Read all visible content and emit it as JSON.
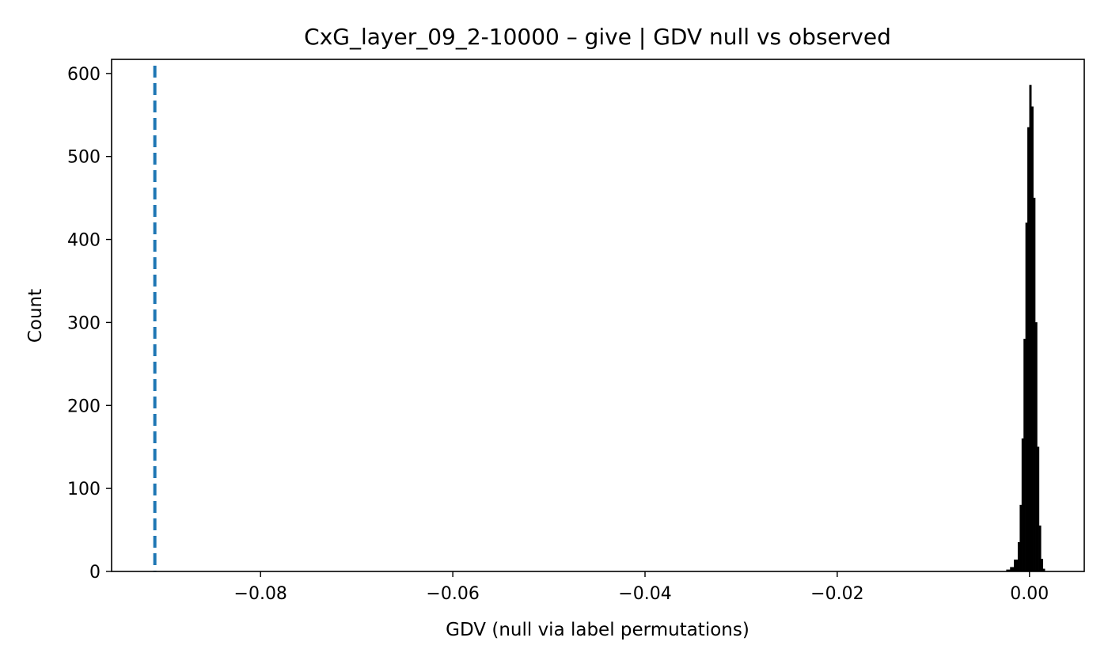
{
  "chart_data": {
    "type": "histogram",
    "title": "CxG_layer_09_2-10000 – give | GDV null vs observed",
    "xlabel": "GDV (null via label permutations)",
    "ylabel": "Count",
    "xlim": [
      -0.0955,
      0.0057
    ],
    "ylim": [
      0,
      617
    ],
    "x_ticks": [
      -0.08,
      -0.06,
      -0.04,
      -0.02,
      0.0
    ],
    "x_tick_labels": [
      "−0.08",
      "−0.06",
      "−0.04",
      "−0.02",
      "0.00"
    ],
    "y_ticks": [
      0,
      100,
      200,
      300,
      400,
      500,
      600
    ],
    "y_tick_labels": [
      "0",
      "100",
      "200",
      "300",
      "400",
      "500",
      "600"
    ],
    "grid": false,
    "observed": {
      "value": -0.091,
      "style": "dashed",
      "color": "#1f77b4"
    },
    "histogram": {
      "bar_color": "#000000",
      "bins": [
        {
          "x0": -0.0024,
          "x1": -0.002,
          "count": 2
        },
        {
          "x0": -0.002,
          "x1": -0.0016,
          "count": 5
        },
        {
          "x0": -0.0016,
          "x1": -0.0012,
          "count": 14
        },
        {
          "x0": -0.0012,
          "x1": -0.001,
          "count": 35
        },
        {
          "x0": -0.001,
          "x1": -0.0008,
          "count": 80
        },
        {
          "x0": -0.0008,
          "x1": -0.0006,
          "count": 160
        },
        {
          "x0": -0.0006,
          "x1": -0.0004,
          "count": 280
        },
        {
          "x0": -0.0004,
          "x1": -0.0002,
          "count": 420
        },
        {
          "x0": -0.0002,
          "x1": 0.0,
          "count": 535
        },
        {
          "x0": 0.0,
          "x1": 0.0002,
          "count": 586
        },
        {
          "x0": 0.0002,
          "x1": 0.0004,
          "count": 560
        },
        {
          "x0": 0.0004,
          "x1": 0.0006,
          "count": 450
        },
        {
          "x0": 0.0006,
          "x1": 0.0008,
          "count": 300
        },
        {
          "x0": 0.0008,
          "x1": 0.001,
          "count": 150
        },
        {
          "x0": 0.001,
          "x1": 0.0012,
          "count": 55
        },
        {
          "x0": 0.0012,
          "x1": 0.0014,
          "count": 15
        },
        {
          "x0": 0.0014,
          "x1": 0.0016,
          "count": 3
        }
      ]
    }
  }
}
